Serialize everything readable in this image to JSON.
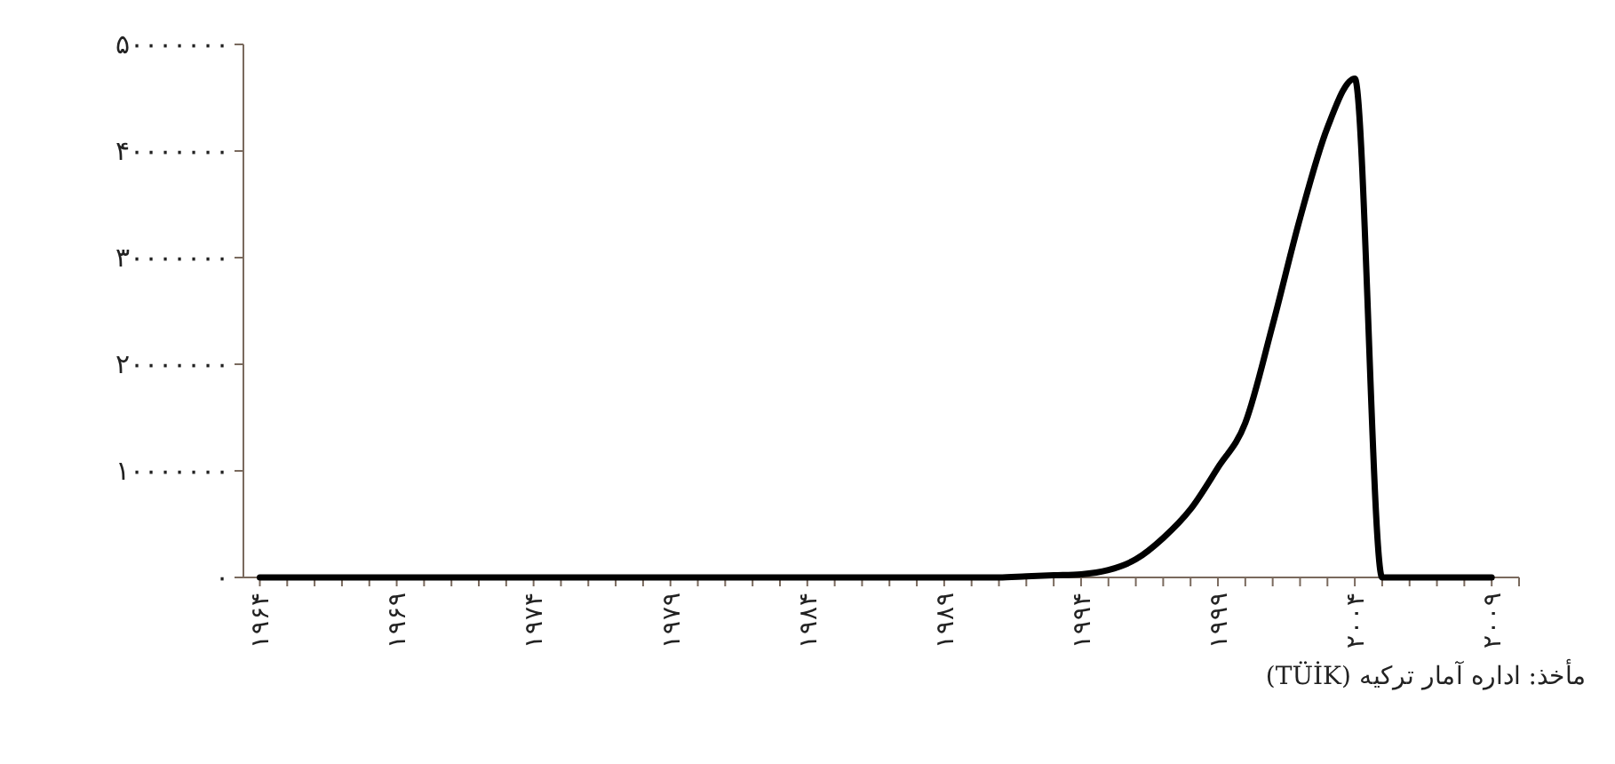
{
  "chart_data": {
    "type": "line",
    "annotations": [
      "مأخذ: اداره آمار ترکیه (TÜİK)"
    ],
    "x": [
      1964,
      1965,
      1966,
      1967,
      1968,
      1969,
      1970,
      1971,
      1972,
      1973,
      1974,
      1975,
      1976,
      1977,
      1978,
      1979,
      1980,
      1981,
      1982,
      1983,
      1984,
      1985,
      1986,
      1987,
      1988,
      1989,
      1990,
      1991,
      1992,
      1993,
      1994,
      1995,
      1996,
      1997,
      1998,
      1999,
      2000,
      2001,
      2002,
      2003,
      2004,
      2005,
      2006,
      2007,
      2008,
      2009
    ],
    "series": [
      {
        "color": "#000000",
        "values": [
          0,
          0,
          0,
          0,
          0,
          0,
          0,
          0,
          0,
          0,
          0,
          0,
          0,
          0,
          0,
          0,
          0,
          0,
          0,
          0,
          0,
          0,
          0,
          0,
          0,
          0,
          0,
          0,
          100000,
          200000,
          300000,
          700000,
          1700000,
          3700000,
          6400000,
          10300000,
          14500000,
          23700000,
          33700000,
          42200000,
          46800000,
          0,
          0,
          0,
          0,
          0
        ]
      }
    ],
    "xlim": [
      1963.4,
      2010
    ],
    "xticks": [
      {
        "value": 1964,
        "label": "۱۹۶۴"
      },
      {
        "value": 1965,
        "label": null
      },
      {
        "value": 1966,
        "label": null
      },
      {
        "value": 1967,
        "label": null
      },
      {
        "value": 1968,
        "label": null
      },
      {
        "value": 1969,
        "label": "۱۹۶۹"
      },
      {
        "value": 1970,
        "label": null
      },
      {
        "value": 1971,
        "label": null
      },
      {
        "value": 1972,
        "label": null
      },
      {
        "value": 1973,
        "label": null
      },
      {
        "value": 1974,
        "label": "۱۹۷۴"
      },
      {
        "value": 1975,
        "label": null
      },
      {
        "value": 1976,
        "label": null
      },
      {
        "value": 1977,
        "label": null
      },
      {
        "value": 1978,
        "label": null
      },
      {
        "value": 1979,
        "label": "۱۹۷۹"
      },
      {
        "value": 1980,
        "label": null
      },
      {
        "value": 1981,
        "label": null
      },
      {
        "value": 1982,
        "label": null
      },
      {
        "value": 1983,
        "label": null
      },
      {
        "value": 1984,
        "label": "۱۹۸۴"
      },
      {
        "value": 1985,
        "label": null
      },
      {
        "value": 1986,
        "label": null
      },
      {
        "value": 1987,
        "label": null
      },
      {
        "value": 1988,
        "label": null
      },
      {
        "value": 1989,
        "label": "۱۹۸۹"
      },
      {
        "value": 1990,
        "label": null
      },
      {
        "value": 1991,
        "label": null
      },
      {
        "value": 1992,
        "label": null
      },
      {
        "value": 1993,
        "label": null
      },
      {
        "value": 1994,
        "label": "۱۹۹۴"
      },
      {
        "value": 1995,
        "label": null
      },
      {
        "value": 1996,
        "label": null
      },
      {
        "value": 1997,
        "label": null
      },
      {
        "value": 1998,
        "label": null
      },
      {
        "value": 1999,
        "label": "۱۹۹۹"
      },
      {
        "value": 2000,
        "label": null
      },
      {
        "value": 2001,
        "label": null
      },
      {
        "value": 2002,
        "label": null
      },
      {
        "value": 2003,
        "label": null
      },
      {
        "value": 2004,
        "label": "۲۰۰۴"
      },
      {
        "value": 2005,
        "label": null
      },
      {
        "value": 2006,
        "label": null
      },
      {
        "value": 2007,
        "label": null
      },
      {
        "value": 2008,
        "label": null
      },
      {
        "value": 2009,
        "label": "۲۰۰۹"
      },
      {
        "value": 2010,
        "label": null
      }
    ],
    "ylim": [
      0,
      50000000
    ],
    "yticks": [
      {
        "value": 0,
        "label": "۰"
      },
      {
        "value": 10000000,
        "label": "۱۰۰۰۰۰۰۰"
      },
      {
        "value": 20000000,
        "label": "۲۰۰۰۰۰۰۰"
      },
      {
        "value": 30000000,
        "label": "۳۰۰۰۰۰۰۰"
      },
      {
        "value": 40000000,
        "label": "۴۰۰۰۰۰۰۰"
      },
      {
        "value": 50000000,
        "label": "۵۰۰۰۰۰۰۰"
      }
    ],
    "grid": false,
    "marker": "none",
    "line_style": "solid"
  }
}
